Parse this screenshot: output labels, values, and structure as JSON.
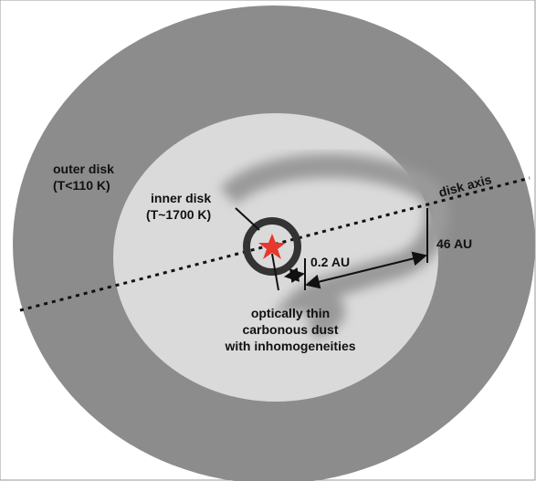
{
  "labels": {
    "outer_disk": [
      "outer disk",
      "(T<110 K)"
    ],
    "inner_disk": [
      "inner disk",
      "(T~1700 K)"
    ],
    "disk_axis": "disk axis",
    "width_46": "46 AU",
    "width_02": "0.2 AU",
    "dust": [
      "optically thin",
      "carbonous dust",
      "with inhomogeneities"
    ]
  }
}
